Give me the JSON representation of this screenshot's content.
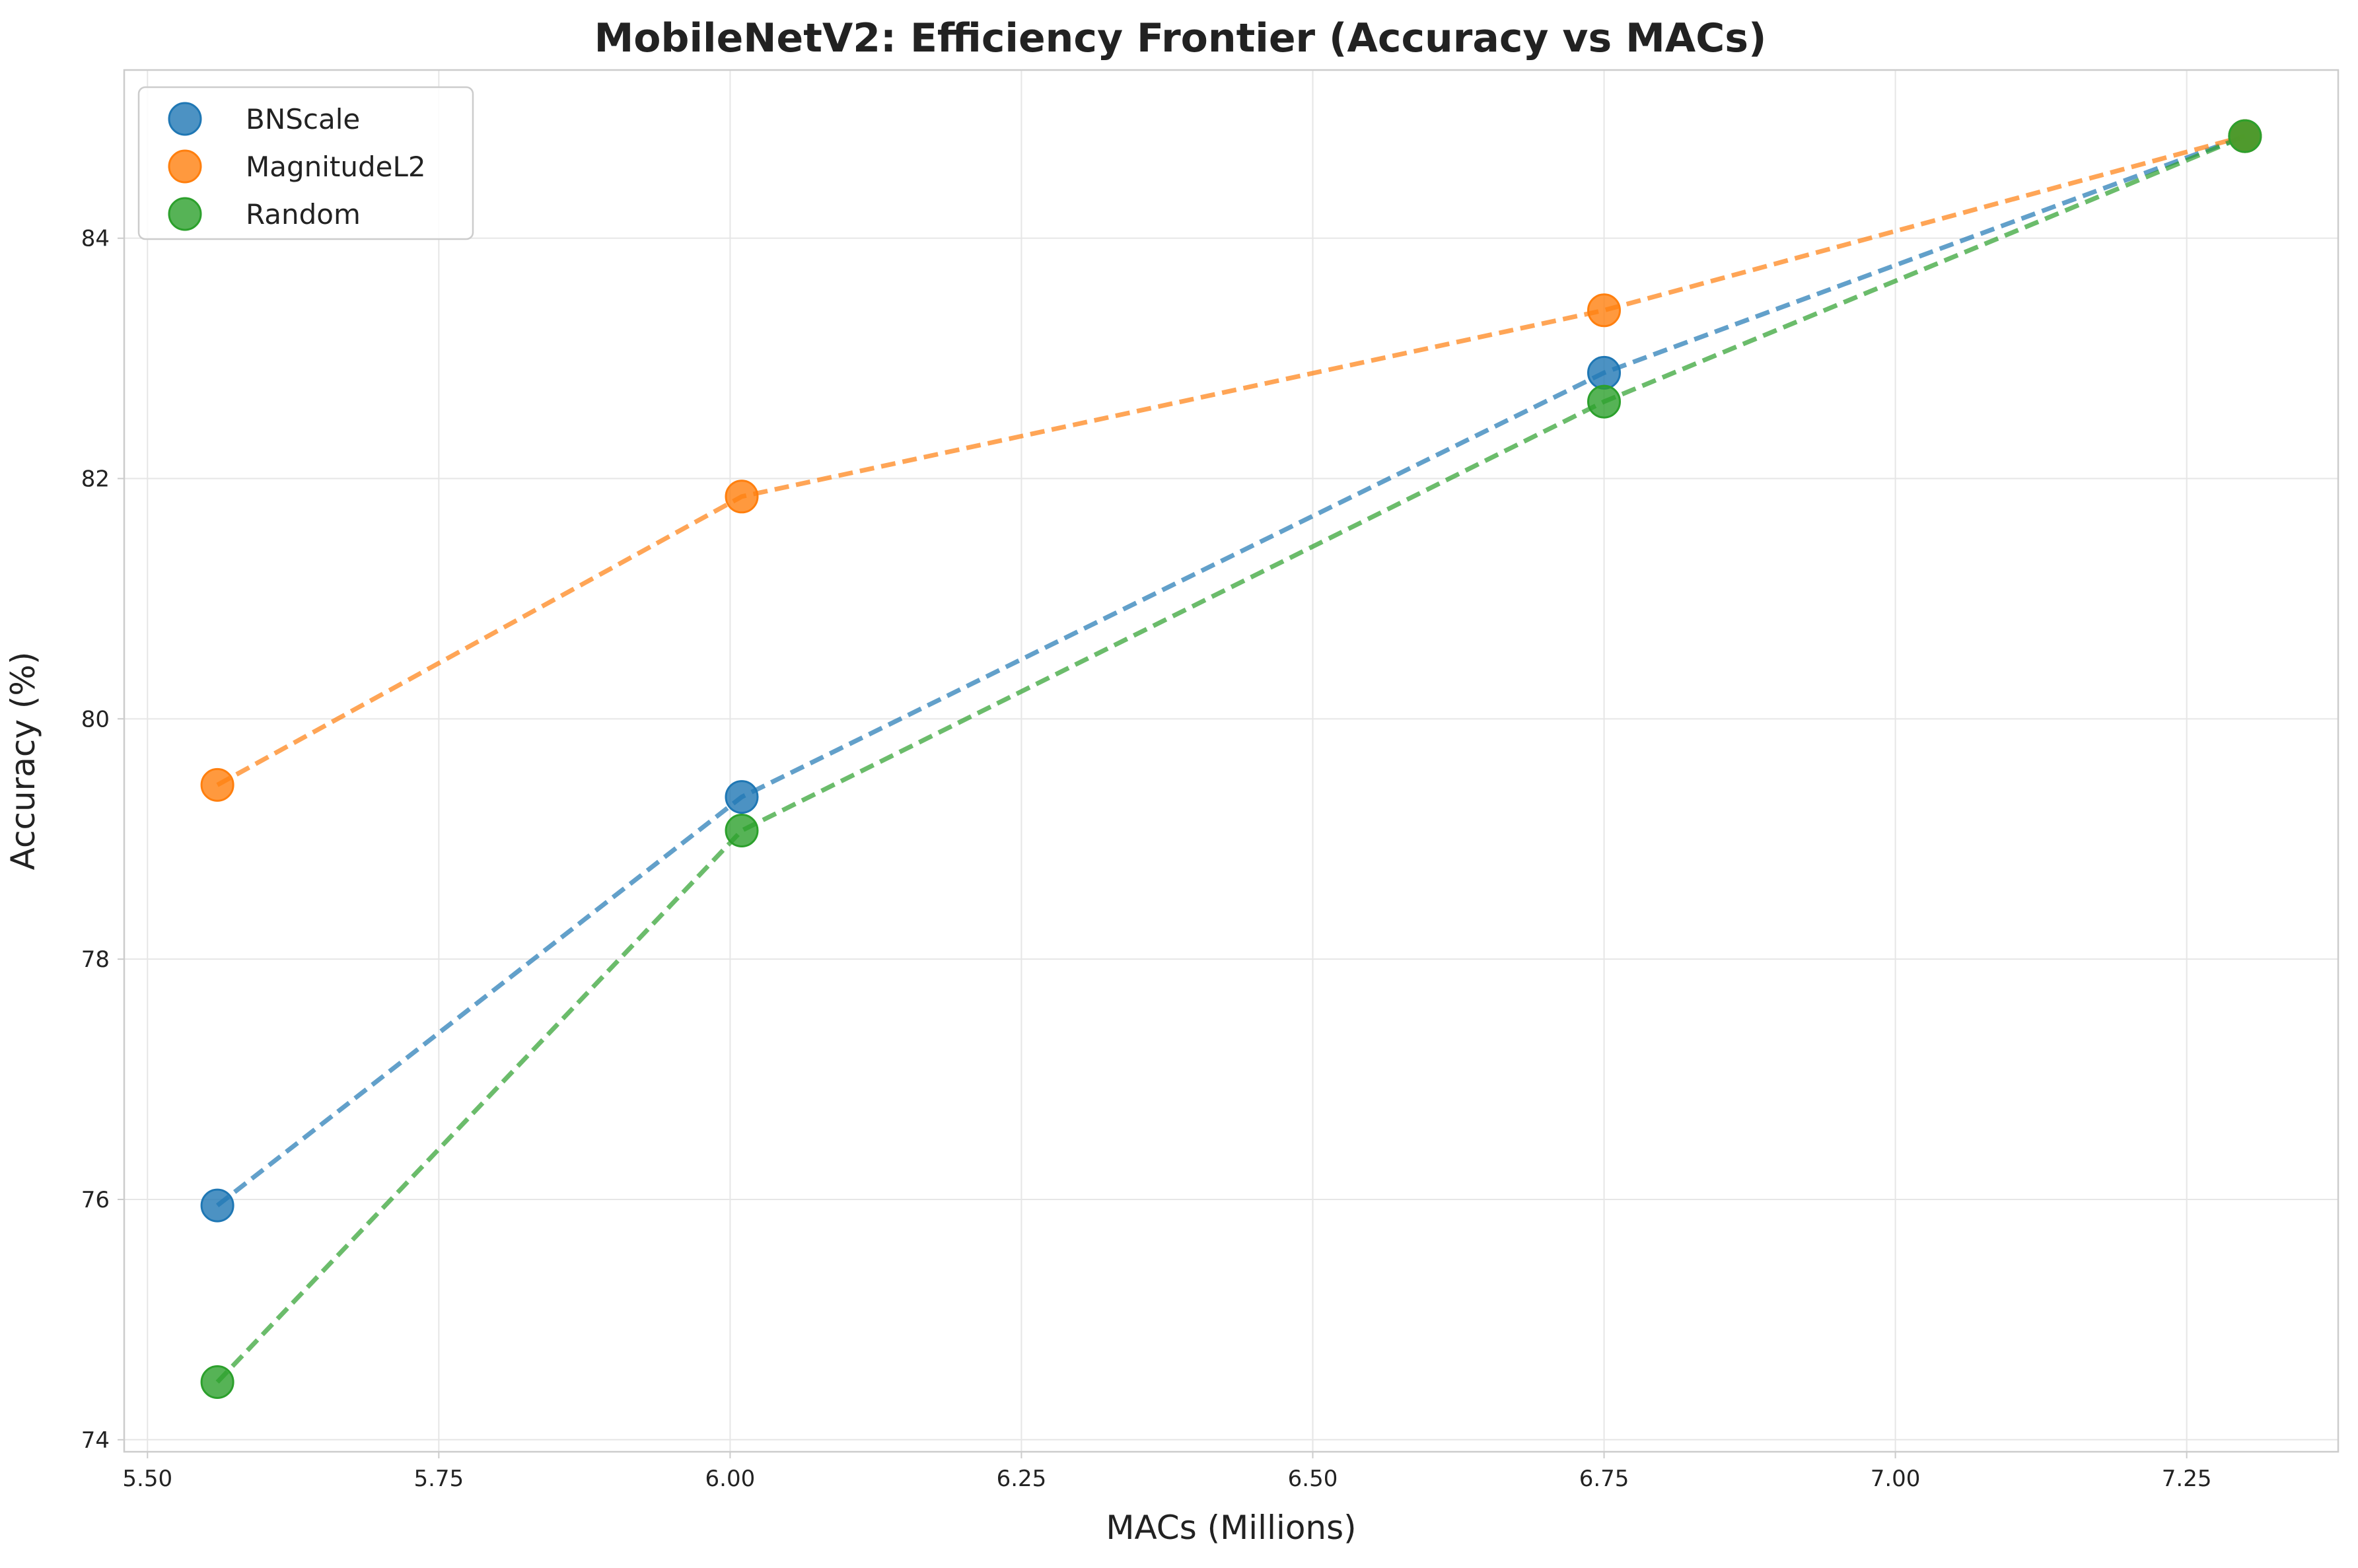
{
  "chart_data": {
    "type": "scatter",
    "title": "MobileNetV2: Efficiency Frontier (Accuracy vs MACs)",
    "xlabel": "MACs (Millions)",
    "ylabel": "Accuracy (%)",
    "xlim": [
      5.48,
      7.38
    ],
    "ylim": [
      73.9,
      85.4
    ],
    "xticks": [
      5.5,
      5.75,
      6.0,
      6.25,
      6.5,
      6.75,
      7.0,
      7.25
    ],
    "xtick_labels": [
      "5.50",
      "5.75",
      "6.00",
      "6.25",
      "6.50",
      "6.75",
      "7.00",
      "7.25"
    ],
    "yticks": [
      74,
      76,
      78,
      80,
      82,
      84
    ],
    "ytick_labels": [
      "74",
      "76",
      "78",
      "80",
      "82",
      "84"
    ],
    "grid": true,
    "legend_position": "top-left",
    "connect_lines": "dashed",
    "series": [
      {
        "name": "BNScale",
        "color": "#1f77b4",
        "x": [
          5.56,
          6.01,
          6.75,
          7.3
        ],
        "y": [
          75.95,
          79.35,
          82.88,
          84.85
        ]
      },
      {
        "name": "MagnitudeL2",
        "color": "#ff7f0e",
        "x": [
          5.56,
          6.01,
          6.75,
          7.3
        ],
        "y": [
          79.45,
          81.85,
          83.4,
          84.85
        ]
      },
      {
        "name": "Random",
        "color": "#2ca02c",
        "x": [
          5.56,
          6.01,
          6.75,
          7.3
        ],
        "y": [
          74.48,
          79.07,
          82.64,
          84.85
        ]
      }
    ]
  }
}
